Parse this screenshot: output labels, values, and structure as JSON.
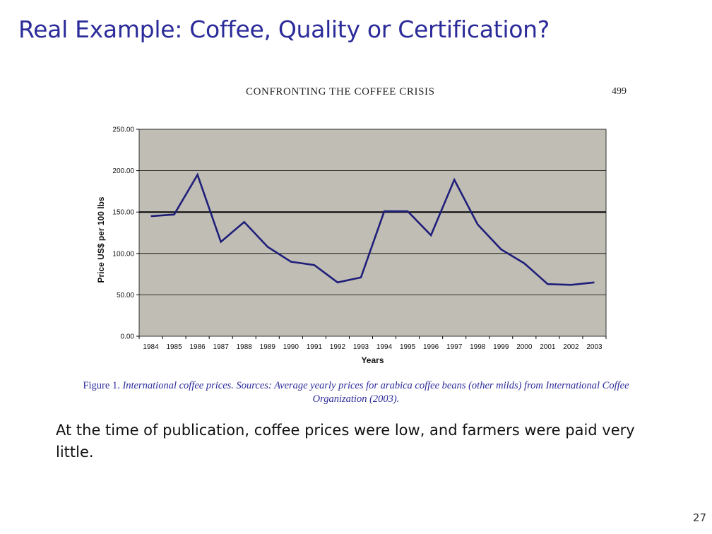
{
  "slide": {
    "title": "Real Example: Coffee, Quality or Certification?",
    "body_text": "At the time of publication, coffee prices were low, and farmers were paid very little.",
    "slide_number": "27"
  },
  "paper": {
    "running_header": "CONFRONTING THE COFFEE CRISIS",
    "page_number": "499",
    "caption_lead": "Figure 1.",
    "caption_body": "International coffee prices. Sources: Average yearly prices for arabica coffee beans (other milds) from International Coffee Organization (2003)."
  },
  "colors": {
    "plot_background": "#c0bdb5",
    "line": "#1f1f7a",
    "title": "#2b2b9a"
  },
  "chart_data": {
    "type": "line",
    "xlabel": "Years",
    "ylabel": "Price US$ per 100 lbs",
    "ylim": [
      0,
      250
    ],
    "yticks": [
      "0.00",
      "50.00",
      "100.00",
      "150.00",
      "200.00",
      "250.00"
    ],
    "reference_line": 150,
    "categories": [
      "1984",
      "1985",
      "1986",
      "1987",
      "1988",
      "1989",
      "1990",
      "1991",
      "1992",
      "1993",
      "1994",
      "1995",
      "1996",
      "1997",
      "1998",
      "1999",
      "2000",
      "2001",
      "2002",
      "2003"
    ],
    "series": [
      {
        "values": [
          145,
          147,
          195,
          114,
          138,
          108,
          90,
          86,
          65,
          71,
          151,
          151,
          122,
          189,
          135,
          105,
          88,
          63,
          62,
          65
        ]
      }
    ],
    "grid": true,
    "legend": "none"
  }
}
